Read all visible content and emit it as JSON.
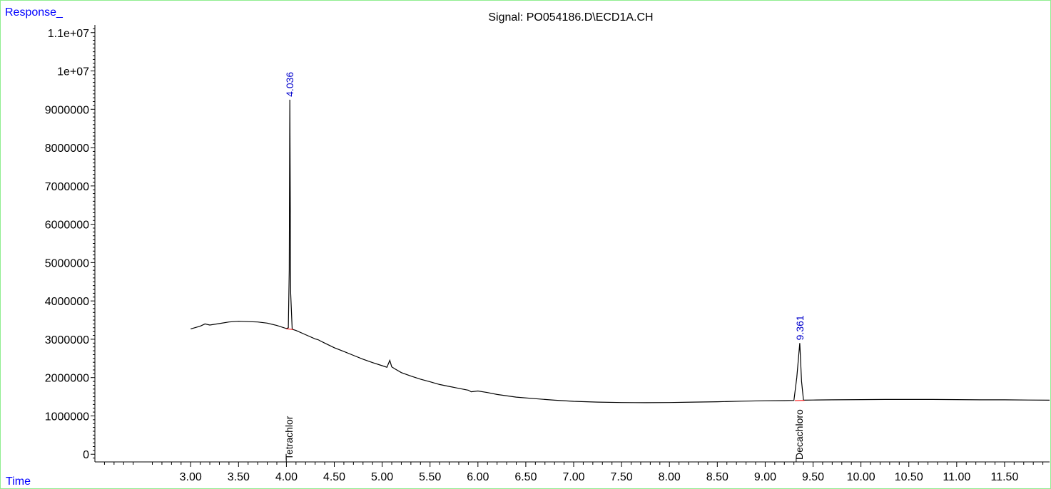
{
  "header": {
    "response_label": "Response_",
    "time_label": "Time"
  },
  "chart_data": {
    "type": "line",
    "title": "Signal: PO054186.D\\ECD1A.CH",
    "xlabel": "Time",
    "ylabel": "Response_",
    "xlim": [
      2.0,
      11.97
    ],
    "ylim": [
      -200000,
      11200000
    ],
    "x_ticks": [
      3.0,
      3.5,
      4.0,
      4.5,
      5.0,
      5.5,
      6.0,
      6.5,
      7.0,
      7.5,
      8.0,
      8.5,
      9.0,
      9.5,
      10.0,
      10.5,
      11.0,
      11.5
    ],
    "x_tick_labels": [
      "3.00",
      "3.50",
      "4.00",
      "4.50",
      "5.00",
      "5.50",
      "6.00",
      "6.50",
      "7.00",
      "7.50",
      "8.00",
      "8.50",
      "9.00",
      "9.50",
      "10.00",
      "10.50",
      "11.00",
      "11.50"
    ],
    "y_ticks": [
      0,
      1000000,
      2000000,
      3000000,
      4000000,
      5000000,
      6000000,
      7000000,
      8000000,
      9000000,
      10000000,
      11000000
    ],
    "y_tick_labels": [
      "0",
      "1000000",
      "2000000",
      "3000000",
      "4000000",
      "5000000",
      "6000000",
      "7000000",
      "8000000",
      "9000000",
      "1e+07",
      "1.1e+07"
    ],
    "grid": false,
    "series": [
      {
        "color": "#000000",
        "x": [
          3.0,
          3.1,
          3.15,
          3.2,
          3.3,
          3.4,
          3.5,
          3.6,
          3.7,
          3.8,
          3.9,
          4.0,
          4.02,
          4.03,
          4.036,
          4.045,
          4.06,
          4.1,
          4.2,
          4.3,
          4.33,
          4.36,
          4.4,
          4.5,
          4.6,
          4.7,
          4.8,
          4.9,
          5.0,
          5.05,
          5.08,
          5.1,
          5.13,
          5.2,
          5.3,
          5.4,
          5.5,
          5.6,
          5.7,
          5.8,
          5.9,
          5.93,
          6.0,
          6.1,
          6.2,
          6.4,
          6.6,
          6.8,
          7.0,
          7.25,
          7.5,
          7.75,
          8.0,
          8.25,
          8.5,
          8.75,
          9.0,
          9.2,
          9.3,
          9.33,
          9.361,
          9.38,
          9.4,
          9.5,
          9.7,
          10.0,
          10.25,
          10.5,
          10.75,
          11.0,
          11.25,
          11.5,
          11.75,
          11.97
        ],
        "y": [
          3270000,
          3340000,
          3400000,
          3370000,
          3410000,
          3450000,
          3470000,
          3460000,
          3450000,
          3420000,
          3360000,
          3280000,
          3300000,
          4800000,
          9250000,
          4200000,
          3260000,
          3230000,
          3120000,
          3010000,
          2990000,
          2950000,
          2900000,
          2780000,
          2680000,
          2580000,
          2480000,
          2390000,
          2310000,
          2270000,
          2450000,
          2280000,
          2230000,
          2130000,
          2040000,
          1960000,
          1890000,
          1820000,
          1770000,
          1720000,
          1670000,
          1630000,
          1650000,
          1610000,
          1560000,
          1490000,
          1450000,
          1410000,
          1380000,
          1360000,
          1350000,
          1345000,
          1350000,
          1360000,
          1370000,
          1385000,
          1395000,
          1400000,
          1405000,
          2000000,
          2900000,
          1900000,
          1410000,
          1415000,
          1420000,
          1425000,
          1430000,
          1430000,
          1430000,
          1425000,
          1420000,
          1420000,
          1415000,
          1410000
        ]
      }
    ],
    "annotations": [
      {
        "text": "4.036",
        "x": 4.036,
        "y": 9250000,
        "color": "#0000cc"
      },
      {
        "text": "9.361",
        "x": 9.361,
        "y": 2900000,
        "color": "#0000cc"
      }
    ],
    "compound_labels": [
      {
        "text": "Tetrachlor",
        "x": 4.036
      },
      {
        "text": "Decachloro",
        "x": 9.361
      }
    ],
    "baselines": [
      {
        "x": [
          4.0,
          4.07
        ],
        "y": [
          3270000,
          3255000
        ],
        "color": "#ff0000"
      },
      {
        "x": [
          9.31,
          9.41
        ],
        "y": [
          1400000,
          1405000
        ],
        "color": "#ff0000"
      }
    ]
  }
}
